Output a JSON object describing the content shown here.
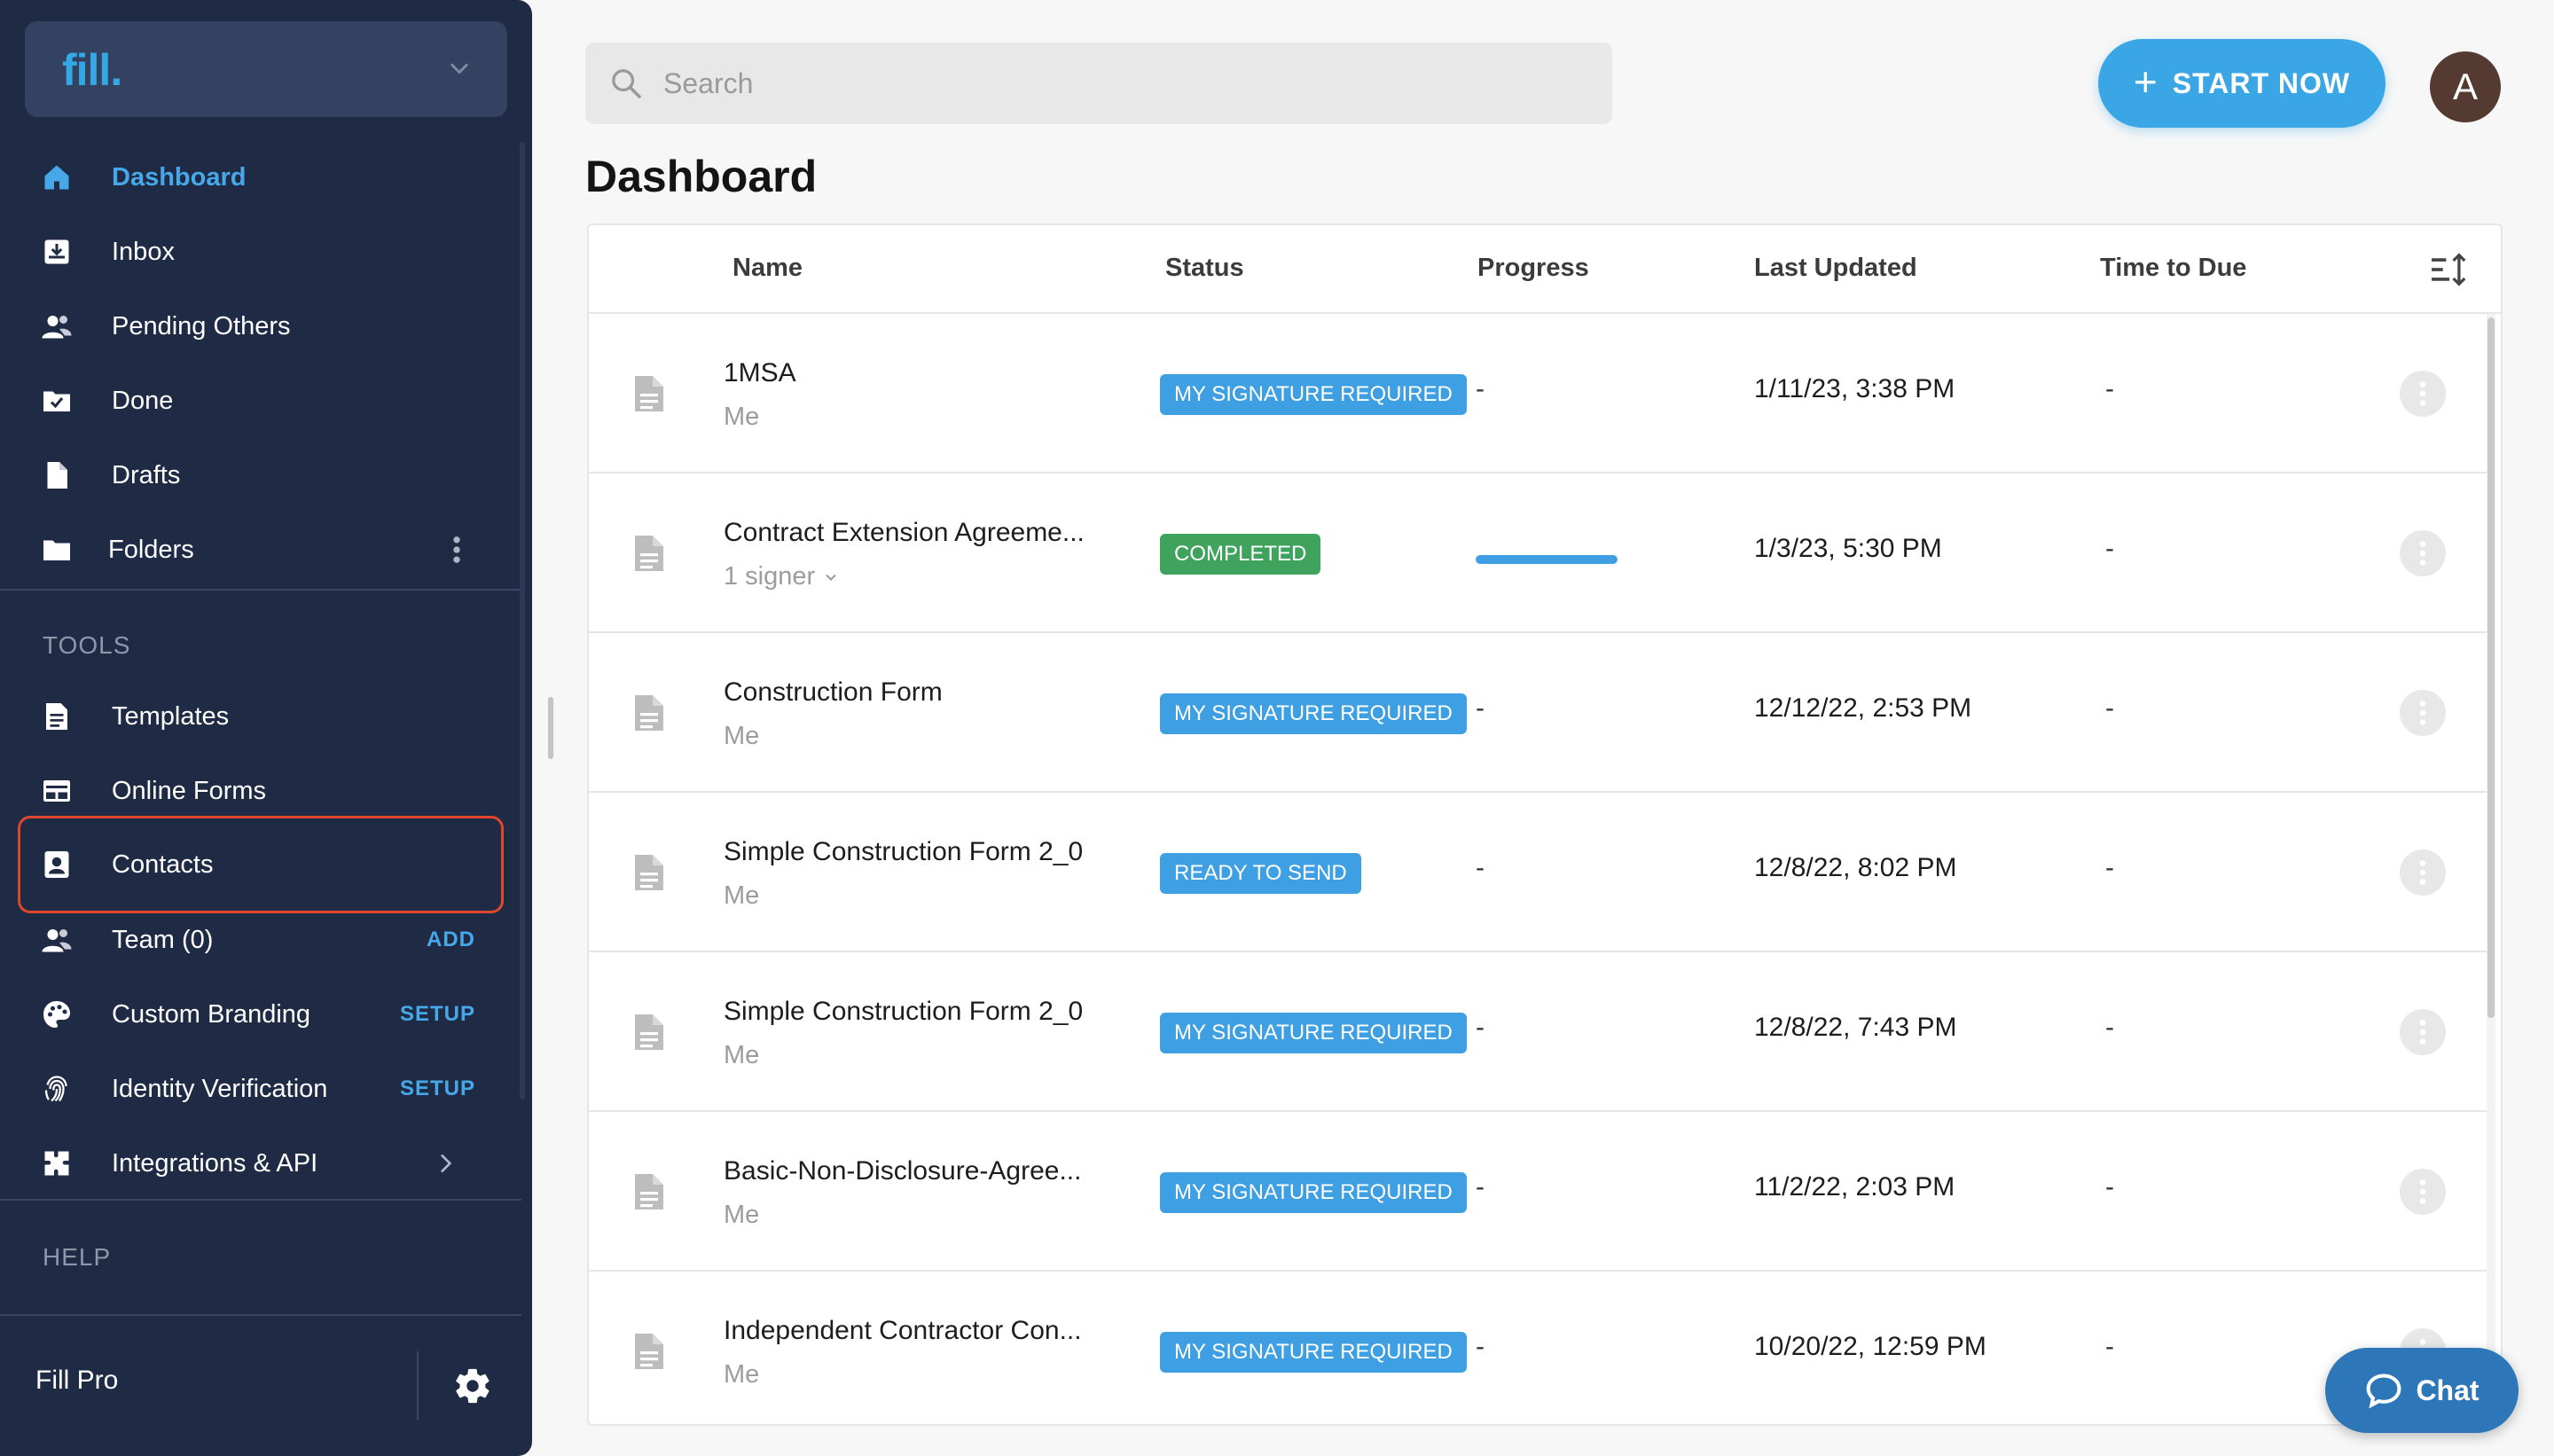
{
  "brand": {
    "logo": "fill."
  },
  "sidebar": {
    "main_items": [
      {
        "label": "Dashboard",
        "icon": "home-icon",
        "active": true
      },
      {
        "label": "Inbox",
        "icon": "inbox-icon"
      },
      {
        "label": "Pending Others",
        "icon": "people-icon"
      },
      {
        "label": "Done",
        "icon": "done-folder-icon"
      },
      {
        "label": "Drafts",
        "icon": "draft-file-icon"
      },
      {
        "label": "Folders",
        "icon": "folder-icon"
      }
    ],
    "tools_title": "TOOLS",
    "tools_items": [
      {
        "label": "Templates",
        "icon": "templates-icon"
      },
      {
        "label": "Online Forms",
        "icon": "online-forms-icon"
      },
      {
        "label": "Contacts",
        "icon": "contacts-icon"
      },
      {
        "label": "Team (0)",
        "icon": "team-icon",
        "action": "ADD"
      },
      {
        "label": "Custom Branding",
        "icon": "palette-icon",
        "action": "SETUP"
      },
      {
        "label": "Identity Verification",
        "icon": "fingerprint-icon",
        "action": "SETUP"
      },
      {
        "label": "Integrations & API",
        "icon": "puzzle-icon"
      }
    ],
    "help_title": "HELP",
    "footer_label": "Fill Pro"
  },
  "header": {
    "search_placeholder": "Search",
    "start_label": "START NOW",
    "avatar_initial": "A"
  },
  "page_title": "Dashboard",
  "table": {
    "columns": [
      "Name",
      "Status",
      "Progress",
      "Last Updated",
      "Time to Due"
    ],
    "rows": [
      {
        "name": "1MSA",
        "sub": "Me",
        "status": "MY SIGNATURE REQUIRED",
        "status_color": "#3e9fe2",
        "progress": "-",
        "updated": "1/11/23, 3:38 PM",
        "due": "-"
      },
      {
        "name": "Contract Extension Agreeme...",
        "sub": "1 signer",
        "status": "COMPLETED",
        "status_color": "#3fa35e",
        "progress_pct": 100,
        "updated": "1/3/23, 5:30 PM",
        "due": "-"
      },
      {
        "name": "Construction Form",
        "sub": "Me",
        "status": "MY SIGNATURE REQUIRED",
        "status_color": "#3e9fe2",
        "progress": "-",
        "updated": "12/12/22, 2:53 PM",
        "due": "-"
      },
      {
        "name": "Simple Construction Form 2_0",
        "sub": "Me",
        "status": "READY TO SEND",
        "status_color": "#3e9fe2",
        "progress": "-",
        "updated": "12/8/22, 8:02 PM",
        "due": "-"
      },
      {
        "name": "Simple Construction Form 2_0",
        "sub": "Me",
        "status": "MY SIGNATURE REQUIRED",
        "status_color": "#3e9fe2",
        "progress": "-",
        "updated": "12/8/22, 7:43 PM",
        "due": "-"
      },
      {
        "name": "Basic-Non-Disclosure-Agree...",
        "sub": "Me",
        "status": "MY SIGNATURE REQUIRED",
        "status_color": "#3e9fe2",
        "progress": "-",
        "updated": "11/2/22, 2:03 PM",
        "due": "-"
      },
      {
        "name": "Independent Contractor Con...",
        "sub": "Me",
        "status": "MY SIGNATURE REQUIRED",
        "status_color": "#3e9fe2",
        "progress": "-",
        "updated": "10/20/22, 12:59 PM",
        "due": "-"
      }
    ]
  },
  "chat_label": "Chat"
}
